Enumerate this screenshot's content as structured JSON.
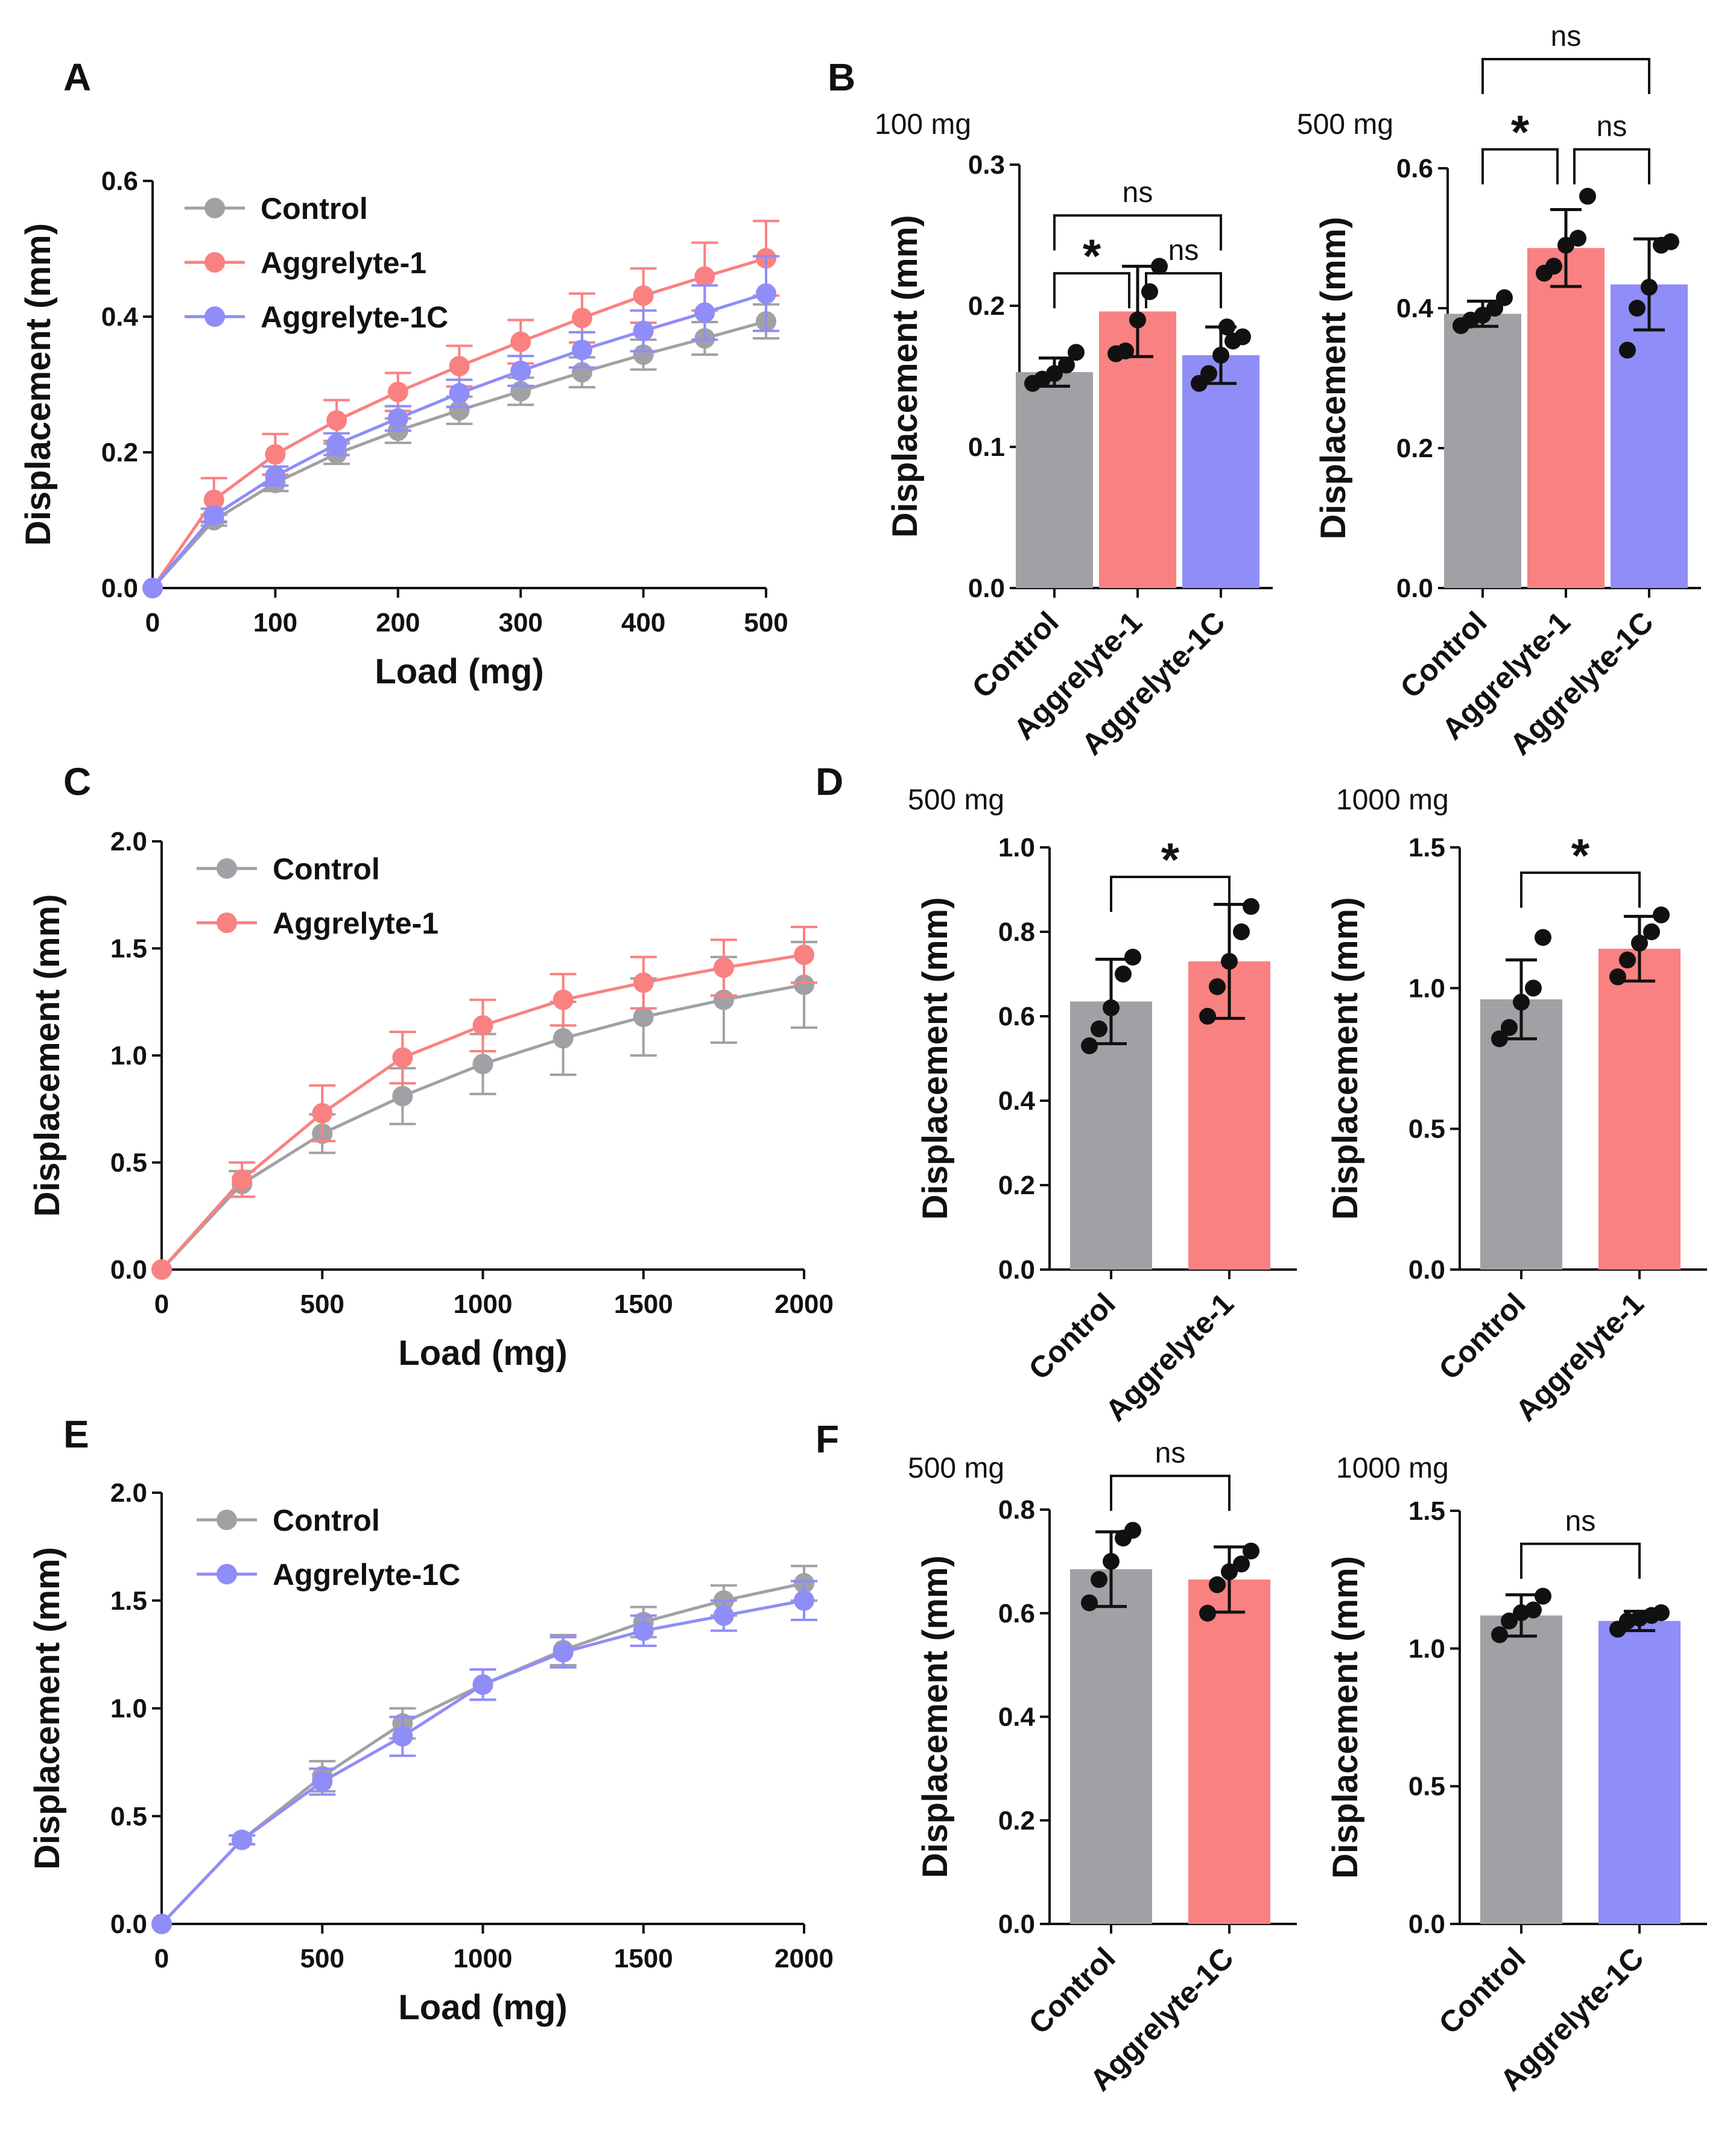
{
  "colors": {
    "control": "#a1a1a5",
    "aggrelyte1": "#f98181",
    "aggrelyte1c": "#8f8df7",
    "axis": "#111111",
    "point": "#111111"
  },
  "chart_data": [
    {
      "id": "A",
      "type": "line",
      "panel_label": "A",
      "xlabel": "Load (mg)",
      "ylabel": "Displacement (mm)",
      "xlim": [
        0,
        500
      ],
      "ylim": [
        0,
        0.6
      ],
      "xticks": [
        0,
        100,
        200,
        300,
        400,
        500
      ],
      "xtick_labels": [
        "0",
        "100",
        "200",
        "300",
        "400",
        "500"
      ],
      "yticks": [
        0,
        0.2,
        0.4,
        0.6
      ],
      "ytick_labels": [
        "0.0",
        "0.2",
        "0.4",
        "0.6"
      ],
      "x": [
        0,
        50,
        100,
        150,
        200,
        250,
        300,
        350,
        400,
        450,
        500
      ],
      "series": [
        {
          "name": "Control",
          "color_key": "control",
          "values": [
            0,
            0.1,
            0.155,
            0.198,
            0.232,
            0.262,
            0.29,
            0.318,
            0.344,
            0.368,
            0.393
          ],
          "errors": [
            0,
            0.008,
            0.012,
            0.015,
            0.018,
            0.02,
            0.02,
            0.022,
            0.022,
            0.024,
            0.025
          ]
        },
        {
          "name": "Aggrelyte-1",
          "color_key": "aggrelyte1",
          "values": [
            0,
            0.13,
            0.197,
            0.247,
            0.289,
            0.327,
            0.363,
            0.398,
            0.431,
            0.459,
            0.486
          ],
          "errors": [
            0,
            0.032,
            0.03,
            0.03,
            0.028,
            0.03,
            0.032,
            0.036,
            0.04,
            0.05,
            0.055
          ]
        },
        {
          "name": "Aggrelyte-1C",
          "color_key": "aggrelyte1c",
          "values": [
            0,
            0.107,
            0.165,
            0.212,
            0.25,
            0.287,
            0.32,
            0.351,
            0.379,
            0.406,
            0.434
          ],
          "errors": [
            0,
            0.01,
            0.014,
            0.016,
            0.018,
            0.02,
            0.022,
            0.026,
            0.03,
            0.04,
            0.055
          ]
        }
      ]
    },
    {
      "id": "B1",
      "type": "bar",
      "panel_label": "B",
      "dose": "100 mg",
      "ylabel": "Displacement (mm)",
      "ylim": [
        0,
        0.3
      ],
      "yticks": [
        0,
        0.1,
        0.2,
        0.3
      ],
      "ytick_labels": [
        "0.0",
        "0.1",
        "0.2",
        "0.3"
      ],
      "categories": [
        "Control",
        "Aggrelyte-1",
        "Aggrelyte-1C"
      ],
      "color_keys": [
        "control",
        "aggrelyte1",
        "aggrelyte1c"
      ],
      "values": [
        0.153,
        0.196,
        0.165
      ],
      "sd": [
        0.01,
        0.032,
        0.02
      ],
      "points": [
        [
          0.145,
          0.148,
          0.152,
          0.158,
          0.167
        ],
        [
          0.166,
          0.168,
          0.19,
          0.21,
          0.228
        ],
        [
          0.145,
          0.152,
          0.165,
          0.175,
          0.178,
          0.185
        ]
      ],
      "brackets": [
        {
          "from": 0,
          "to": 1,
          "y": 0.223,
          "label": "*"
        },
        {
          "from": 1,
          "to": 2,
          "y": 0.223,
          "label": "ns"
        },
        {
          "from": 0,
          "to": 2,
          "y": 0.264,
          "label": "ns"
        }
      ]
    },
    {
      "id": "B2",
      "type": "bar",
      "panel_label": "",
      "dose": "500 mg",
      "ylabel": "Displacement (mm)",
      "ylim": [
        0,
        0.6
      ],
      "yticks": [
        0,
        0.2,
        0.4,
        0.6
      ],
      "ytick_labels": [
        "0.0",
        "0.2",
        "0.4",
        "0.6"
      ],
      "categories": [
        "Control",
        "Aggrelyte-1",
        "Aggrelyte-1C"
      ],
      "color_keys": [
        "control",
        "aggrelyte1",
        "aggrelyte1c"
      ],
      "values": [
        0.392,
        0.486,
        0.434
      ],
      "sd": [
        0.018,
        0.055,
        0.065
      ],
      "points": [
        [
          0.375,
          0.383,
          0.39,
          0.4,
          0.415
        ],
        [
          0.45,
          0.46,
          0.49,
          0.5,
          0.56
        ],
        [
          0.34,
          0.4,
          0.43,
          0.49,
          0.495
        ]
      ],
      "brackets": [
        {
          "from": 0,
          "to": 1,
          "y": 0.627,
          "label": "*"
        },
        {
          "from": 1,
          "to": 2,
          "y": 0.627,
          "label": "ns"
        },
        {
          "from": 0,
          "to": 2,
          "y": 0.756,
          "label": "ns"
        }
      ]
    },
    {
      "id": "C",
      "type": "line",
      "panel_label": "C",
      "xlabel": "Load (mg)",
      "ylabel": "Displacement (mm)",
      "xlim": [
        0,
        2000
      ],
      "ylim": [
        0,
        2.0
      ],
      "xticks": [
        0,
        500,
        1000,
        1500,
        2000
      ],
      "xtick_labels": [
        "0",
        "500",
        "1000",
        "1500",
        "2000"
      ],
      "yticks": [
        0,
        0.5,
        1.0,
        1.5,
        2.0
      ],
      "ytick_labels": [
        "0.0",
        "0.5",
        "1.0",
        "1.5",
        "2.0"
      ],
      "x": [
        0,
        250,
        500,
        750,
        1000,
        1250,
        1500,
        1750,
        2000
      ],
      "series": [
        {
          "name": "Control",
          "color_key": "control",
          "values": [
            0,
            0.4,
            0.635,
            0.81,
            0.96,
            1.08,
            1.18,
            1.26,
            1.33
          ],
          "errors": [
            0,
            0.06,
            0.09,
            0.13,
            0.14,
            0.17,
            0.18,
            0.2,
            0.2
          ]
        },
        {
          "name": "Aggrelyte-1",
          "color_key": "aggrelyte1",
          "values": [
            0,
            0.42,
            0.73,
            0.99,
            1.14,
            1.26,
            1.34,
            1.41,
            1.47
          ],
          "errors": [
            0,
            0.08,
            0.13,
            0.12,
            0.12,
            0.12,
            0.12,
            0.13,
            0.13
          ]
        }
      ]
    },
    {
      "id": "D1",
      "type": "bar",
      "panel_label": "D",
      "dose": "500 mg",
      "ylabel": "Displacement (mm)",
      "ylim": [
        0,
        1.0
      ],
      "yticks": [
        0,
        0.2,
        0.4,
        0.6,
        0.8,
        1.0
      ],
      "ytick_labels": [
        "0.0",
        "0.2",
        "0.4",
        "0.6",
        "0.8",
        "1.0"
      ],
      "categories": [
        "Control",
        "Aggrelyte-1"
      ],
      "color_keys": [
        "control",
        "aggrelyte1"
      ],
      "values": [
        0.635,
        0.73
      ],
      "sd": [
        0.1,
        0.135
      ],
      "points": [
        [
          0.53,
          0.57,
          0.62,
          0.7,
          0.74
        ],
        [
          0.6,
          0.67,
          0.73,
          0.8,
          0.86
        ]
      ],
      "brackets": [
        {
          "from": 0,
          "to": 1,
          "y": 0.93,
          "label": "*"
        }
      ]
    },
    {
      "id": "D2",
      "type": "bar",
      "panel_label": "",
      "dose": "1000 mg",
      "ylabel": "Displacement (mm)",
      "ylim": [
        0,
        1.5
      ],
      "yticks": [
        0,
        0.5,
        1.0,
        1.5
      ],
      "ytick_labels": [
        "0.0",
        "0.5",
        "1.0",
        "1.5"
      ],
      "categories": [
        "Control",
        "Aggrelyte-1"
      ],
      "color_keys": [
        "control",
        "aggrelyte1"
      ],
      "values": [
        0.96,
        1.14
      ],
      "sd": [
        0.14,
        0.115
      ],
      "points": [
        [
          0.82,
          0.86,
          0.95,
          1.0,
          1.18
        ],
        [
          1.04,
          1.1,
          1.16,
          1.2,
          1.26
        ]
      ],
      "brackets": [
        {
          "from": 0,
          "to": 1,
          "y": 1.41,
          "label": "*"
        }
      ]
    },
    {
      "id": "E",
      "type": "line",
      "panel_label": "E",
      "xlabel": "Load (mg)",
      "ylabel": "Displacement (mm)",
      "xlim": [
        0,
        2000
      ],
      "ylim": [
        0,
        2.0
      ],
      "xticks": [
        0,
        500,
        1000,
        1500,
        2000
      ],
      "xtick_labels": [
        "0",
        "500",
        "1000",
        "1500",
        "2000"
      ],
      "yticks": [
        0,
        0.5,
        1.0,
        1.5,
        2.0
      ],
      "ytick_labels": [
        "0.0",
        "0.5",
        "1.0",
        "1.5",
        "2.0"
      ],
      "x": [
        0,
        250,
        500,
        750,
        1000,
        1250,
        1500,
        1750,
        2000
      ],
      "series": [
        {
          "name": "Control",
          "color_key": "control",
          "values": [
            0,
            0.39,
            0.685,
            0.93,
            1.11,
            1.27,
            1.4,
            1.5,
            1.58
          ],
          "errors": [
            0,
            0.02,
            0.07,
            0.07,
            0.07,
            0.07,
            0.07,
            0.07,
            0.08
          ]
        },
        {
          "name": "Aggrelyte-1C",
          "color_key": "aggrelyte1c",
          "values": [
            0,
            0.39,
            0.66,
            0.87,
            1.11,
            1.26,
            1.36,
            1.43,
            1.5
          ],
          "errors": [
            0,
            0.02,
            0.06,
            0.09,
            0.07,
            0.07,
            0.07,
            0.07,
            0.09
          ]
        }
      ]
    },
    {
      "id": "F1",
      "type": "bar",
      "panel_label": "F",
      "dose": "500 mg",
      "ylabel": "Displacement (mm)",
      "ylim": [
        0,
        0.8
      ],
      "yticks": [
        0,
        0.2,
        0.4,
        0.6,
        0.8
      ],
      "ytick_labels": [
        "0.0",
        "0.2",
        "0.4",
        "0.6",
        "0.8"
      ],
      "categories": [
        "Control",
        "Aggrelyte-1C"
      ],
      "color_keys": [
        "control",
        "aggrelyte1"
      ],
      "values": [
        0.685,
        0.665
      ],
      "sd": [
        0.072,
        0.063
      ],
      "points": [
        [
          0.62,
          0.665,
          0.7,
          0.745,
          0.76
        ],
        [
          0.6,
          0.655,
          0.68,
          0.695,
          0.72
        ]
      ],
      "brackets": [
        {
          "from": 0,
          "to": 1,
          "y": 0.865,
          "label": "ns"
        }
      ]
    },
    {
      "id": "F2",
      "type": "bar",
      "panel_label": "",
      "dose": "1000 mg",
      "ylabel": "Displacement (mm)",
      "ylim": [
        0,
        1.5
      ],
      "yticks": [
        0,
        0.5,
        1.0,
        1.5
      ],
      "ytick_labels": [
        "0.0",
        "0.5",
        "1.0",
        "1.5"
      ],
      "categories": [
        "Control",
        "Aggrelyte-1C"
      ],
      "color_keys": [
        "control",
        "aggrelyte1c"
      ],
      "values": [
        1.12,
        1.1
      ],
      "sd": [
        0.075,
        0.035
      ],
      "points": [
        [
          1.05,
          1.1,
          1.13,
          1.14,
          1.19
        ],
        [
          1.07,
          1.1,
          1.11,
          1.12,
          1.13
        ]
      ],
      "brackets": [
        {
          "from": 0,
          "to": 1,
          "y": 1.38,
          "label": "ns"
        }
      ]
    }
  ]
}
